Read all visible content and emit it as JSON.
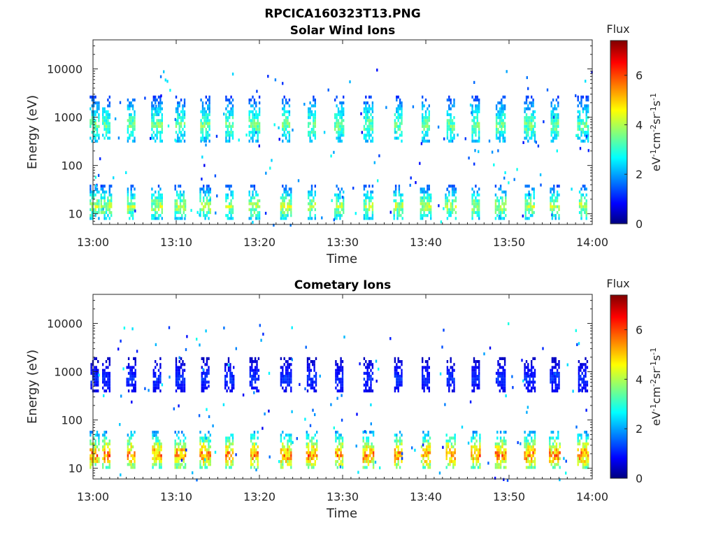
{
  "figure": {
    "title": "RPCICA160323T13.PNG"
  },
  "chart_data": [
    {
      "type": "heatmap",
      "title": "Solar Wind Ions",
      "xlabel": "Time",
      "ylabel": "Energy (eV)",
      "x_ticks": [
        "13:00",
        "13:10",
        "13:20",
        "13:30",
        "13:40",
        "13:50",
        "14:00"
      ],
      "x_range": [
        "13:00",
        "14:00"
      ],
      "y_scale": "log",
      "y_ticks": [
        10,
        100,
        1000,
        10000
      ],
      "y_tick_labels": [
        "10",
        "100",
        "1000",
        "10000"
      ],
      "y_range": [
        6,
        40000
      ],
      "colorbar": {
        "label": "Flux",
        "units": "eV-1cm-2sr-1s-1",
        "range": [
          0,
          7.4
        ],
        "ticks": [
          0,
          2,
          4,
          6
        ],
        "colormap": "jet"
      },
      "bursts_minutes": [
        0.2,
        1.6,
        4.6,
        7.7,
        10.5,
        13.5,
        16.4,
        19.4,
        23.2,
        26.3,
        29.6,
        33.1,
        36.7,
        40.0,
        43.0,
        46.0,
        49.0,
        52.5,
        55.5,
        58.9
      ],
      "bands": [
        {
          "energy_eV": [
            300,
            2800
          ],
          "peak_flux": 4.2,
          "description": "solar wind proton band"
        },
        {
          "energy_eV": [
            8,
            40
          ],
          "peak_flux": 4.8,
          "description": "low energy band"
        }
      ]
    },
    {
      "type": "heatmap",
      "title": "Cometary Ions",
      "xlabel": "Time",
      "ylabel": "Energy (eV)",
      "x_ticks": [
        "13:00",
        "13:10",
        "13:20",
        "13:30",
        "13:40",
        "13:50",
        "14:00"
      ],
      "x_range": [
        "13:00",
        "14:00"
      ],
      "y_scale": "log",
      "y_ticks": [
        10,
        100,
        1000,
        10000
      ],
      "y_tick_labels": [
        "10",
        "100",
        "1000",
        "10000"
      ],
      "y_range": [
        6,
        40000
      ],
      "colorbar": {
        "label": "Flux",
        "units": "eV-1cm-2sr-1s-1",
        "range": [
          0,
          7.4
        ],
        "ticks": [
          0,
          2,
          4,
          6
        ],
        "colormap": "jet"
      },
      "bursts_minutes": [
        0.2,
        1.6,
        4.6,
        7.7,
        10.5,
        13.5,
        16.4,
        19.4,
        23.2,
        26.3,
        29.6,
        33.1,
        36.7,
        40.0,
        43.0,
        46.0,
        49.0,
        52.5,
        55.5,
        58.9
      ],
      "bands": [
        {
          "energy_eV": [
            10,
            60
          ],
          "peak_flux": 6.5,
          "description": "cometary ion band"
        },
        {
          "energy_eV": [
            400,
            2000
          ],
          "peak_flux": 1.5,
          "description": "sparse high energy counts"
        }
      ]
    }
  ]
}
